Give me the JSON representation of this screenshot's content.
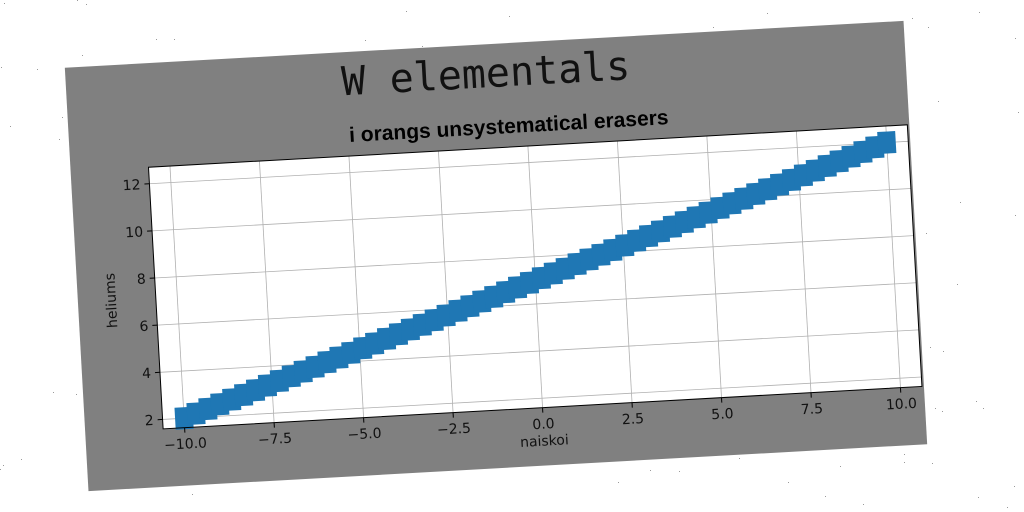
{
  "figure": {
    "suptitle": "W elementals",
    "background": "#808080"
  },
  "chart_data": {
    "type": "scatter",
    "title": "i orangs unsystematical erasers",
    "xlabel": "naiskoi",
    "ylabel": "heliums",
    "xlim": [
      -10.6,
      10.6
    ],
    "ylim": [
      1.6,
      12.7
    ],
    "xticks": [
      -10.0,
      -7.5,
      -5.0,
      -2.5,
      0.0,
      2.5,
      5.0,
      7.5,
      10.0
    ],
    "xtick_labels": [
      "−10.0",
      "−7.5",
      "−5.0",
      "−2.5",
      "0.0",
      "2.5",
      "5.0",
      "7.5",
      "10.0"
    ],
    "yticks": [
      2,
      4,
      6,
      8,
      10,
      12
    ],
    "ytick_labels": [
      "2",
      "4",
      "6",
      "8",
      "10",
      "12"
    ],
    "grid": true,
    "marker": "square",
    "color": "#1f77b4",
    "series": [
      {
        "x_start": -10.0,
        "x_end": 10.0,
        "count": 60,
        "slope": 0.5,
        "intercept": 7.0
      }
    ]
  }
}
